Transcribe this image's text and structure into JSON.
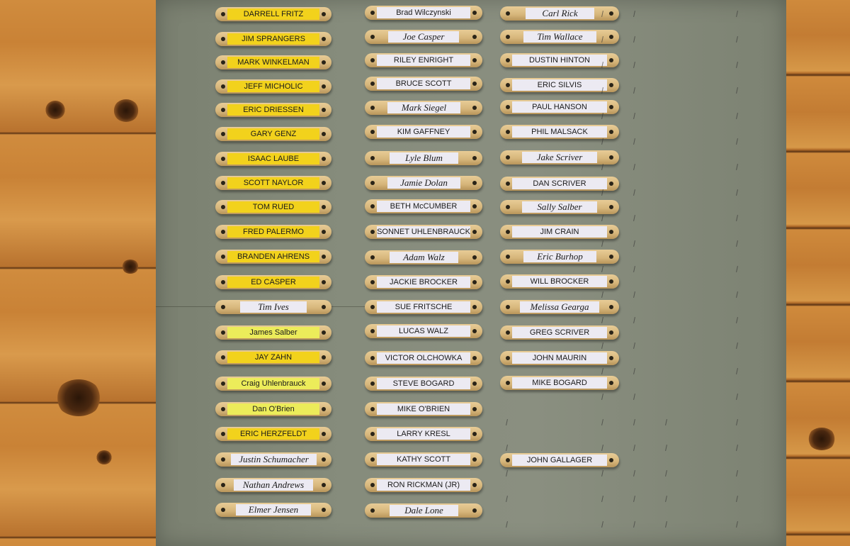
{
  "columns": [
    {
      "plaques": [
        {
          "name": "DARRELL FRITZ",
          "tape": "yellow",
          "handwritten": false
        },
        {
          "name": "JIM SPRANGERS",
          "tape": "yellow",
          "handwritten": false
        },
        {
          "name": "MARK WINKELMAN",
          "tape": "yellow",
          "handwritten": false
        },
        {
          "name": "JEFF MICHOLIC",
          "tape": "yellow",
          "handwritten": false
        },
        {
          "name": "ERIC DRIESSEN",
          "tape": "yellow",
          "handwritten": false
        },
        {
          "name": "GARY GENZ",
          "tape": "yellow",
          "handwritten": false
        },
        {
          "name": "ISAAC LAUBE",
          "tape": "yellow",
          "handwritten": false
        },
        {
          "name": "SCOTT NAYLOR",
          "tape": "yellow",
          "handwritten": false
        },
        {
          "name": "TOM RUED",
          "tape": "yellow",
          "handwritten": false
        },
        {
          "name": "FRED PALERMO",
          "tape": "yellow",
          "handwritten": false
        },
        {
          "name": "BRANDEN AHRENS",
          "tape": "yellow",
          "handwritten": false
        },
        {
          "name": "ED CASPER",
          "tape": "yellow",
          "handwritten": false
        },
        {
          "name": "Tim Ives",
          "tape": "white",
          "handwritten": true
        },
        {
          "name": "James Salber",
          "tape": "pale-yellow",
          "handwritten": false
        },
        {
          "name": "JAY ZAHN",
          "tape": "yellow",
          "handwritten": false
        },
        {
          "name": "Craig Uhlenbrauck",
          "tape": "pale-yellow",
          "handwritten": false
        },
        {
          "name": "Dan O'Brien",
          "tape": "pale-yellow",
          "handwritten": false
        },
        {
          "name": "ERIC HERZFELDT",
          "tape": "yellow",
          "handwritten": false
        },
        {
          "name": "Justin Schumacher",
          "tape": "white",
          "handwritten": true
        },
        {
          "name": "Nathan Andrews",
          "tape": "white",
          "handwritten": true
        },
        {
          "name": "Elmer Jensen",
          "tape": "white",
          "handwritten": true
        }
      ]
    },
    {
      "plaques": [
        {
          "name": "Brad Wilczynski",
          "tape": "white",
          "handwritten": false
        },
        {
          "name": "Joe Casper",
          "tape": "white",
          "handwritten": true
        },
        {
          "name": "RILEY ENRIGHT",
          "tape": "white",
          "handwritten": false
        },
        {
          "name": "BRUCE SCOTT",
          "tape": "white",
          "handwritten": false
        },
        {
          "name": "Mark Siegel",
          "tape": "white",
          "handwritten": true
        },
        {
          "name": "KIM GAFFNEY",
          "tape": "white",
          "handwritten": false
        },
        {
          "name": "Lyle Blum",
          "tape": "white",
          "handwritten": true
        },
        {
          "name": "Jamie Dolan",
          "tape": "white",
          "handwritten": true
        },
        {
          "name": "BETH McCUMBER",
          "tape": "white",
          "handwritten": false
        },
        {
          "name": "SONNET UHLENBRAUCK",
          "tape": "white",
          "handwritten": false
        },
        {
          "name": "Adam Walz",
          "tape": "white",
          "handwritten": true
        },
        {
          "name": "JACKIE BROCKER",
          "tape": "white",
          "handwritten": false
        },
        {
          "name": "SUE FRITSCHE",
          "tape": "white",
          "handwritten": false
        },
        {
          "name": "LUCAS WALZ",
          "tape": "white",
          "handwritten": false
        },
        {
          "name": "VICTOR OLCHOWKA",
          "tape": "white",
          "handwritten": false
        },
        {
          "name": "STEVE BOGARD",
          "tape": "white",
          "handwritten": false
        },
        {
          "name": "MIKE O'BRIEN",
          "tape": "white",
          "handwritten": false
        },
        {
          "name": "LARRY KRESL",
          "tape": "white",
          "handwritten": false
        },
        {
          "name": "KATHY SCOTT",
          "tape": "white",
          "handwritten": false
        },
        {
          "name": "RON RICKMAN (JR)",
          "tape": "white",
          "handwritten": false
        },
        {
          "name": "Dale Lone",
          "tape": "white",
          "handwritten": true
        }
      ]
    },
    {
      "plaques": [
        {
          "name": "Carl Rick",
          "tape": "white",
          "handwritten": true
        },
        {
          "name": "Tim Wallace",
          "tape": "white",
          "handwritten": true
        },
        {
          "name": "DUSTIN HINTON",
          "tape": "white",
          "handwritten": false
        },
        {
          "name": "ERIC SILVIS",
          "tape": "white",
          "handwritten": false
        },
        {
          "name": "PAUL HANSON",
          "tape": "white",
          "handwritten": false
        },
        {
          "name": "PHIL MALSACK",
          "tape": "white",
          "handwritten": false
        },
        {
          "name": "Jake Scriver",
          "tape": "white",
          "handwritten": true
        },
        {
          "name": "DAN SCRIVER",
          "tape": "white",
          "handwritten": false
        },
        {
          "name": "Sally Salber",
          "tape": "white",
          "handwritten": true
        },
        {
          "name": "JIM CRAIN",
          "tape": "white",
          "handwritten": false
        },
        {
          "name": "Eric Burhop",
          "tape": "white",
          "handwritten": true
        },
        {
          "name": "WILL BROCKER",
          "tape": "white",
          "handwritten": false
        },
        {
          "name": "Melissa Gearga",
          "tape": "white",
          "handwritten": true
        },
        {
          "name": "GREG SCRIVER",
          "tape": "white",
          "handwritten": false
        },
        {
          "name": "JOHN MAURIN",
          "tape": "white",
          "handwritten": false
        },
        {
          "name": "MIKE BOGARD",
          "tape": "white",
          "handwritten": false
        },
        {
          "name": "JOHN GALLAGER",
          "tape": "white",
          "handwritten": false
        }
      ]
    }
  ]
}
